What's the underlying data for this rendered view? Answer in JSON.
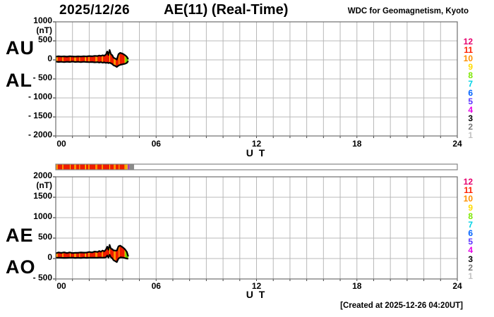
{
  "header": {
    "date": "2025/12/26",
    "title": "AE(11) (Real-Time)",
    "credit": "WDC for Geomagnetism, Kyoto"
  },
  "footer": {
    "created": "[Created at 2025-12-26 04:20UT]"
  },
  "panels": {
    "top": {
      "label_upper": "AU",
      "label_lower": "AL",
      "unit": "(nT)",
      "ytick_labels": [
        "1000",
        "500",
        "0",
        "- 500",
        "- 1000",
        "- 1500",
        "- 2000"
      ],
      "xtick_labels": [
        "00",
        "06",
        "12",
        "18",
        "24"
      ],
      "xlabel": "U T"
    },
    "bottom": {
      "label_upper": "AE",
      "label_lower": "AO",
      "unit": "(nT)",
      "ytick_labels": [
        "2000",
        "1500",
        "1000",
        "500",
        "0",
        "- 500"
      ],
      "xtick_labels": [
        "00",
        "06",
        "12",
        "18",
        "24"
      ],
      "xlabel": "U T"
    }
  },
  "stations": [
    {
      "n": "12",
      "color": "#e6006e"
    },
    {
      "n": "11",
      "color": "#ff2000"
    },
    {
      "n": "10",
      "color": "#ff9000"
    },
    {
      "n": "9",
      "color": "#ffdc00"
    },
    {
      "n": "8",
      "color": "#7de800"
    },
    {
      "n": "7",
      "color": "#00d2e6"
    },
    {
      "n": "6",
      "color": "#0064ff"
    },
    {
      "n": "5",
      "color": "#5a32ff"
    },
    {
      "n": "4",
      "color": "#e600e6"
    },
    {
      "n": "3",
      "color": "#000000"
    },
    {
      "n": "2",
      "color": "#7a7a7a"
    },
    {
      "n": "1",
      "color": "#c2c2c2"
    }
  ],
  "chart_data": {
    "type": "line",
    "title": "AE(11) (Real-Time) 2025/12/26",
    "xlabel": "U T",
    "ylabel": "nT",
    "xlim": [
      0,
      24
    ],
    "xtick_hours": [
      0,
      6,
      12,
      18,
      24
    ],
    "data_end_hour": 4.33,
    "x_hours": [
      0,
      0.17,
      0.33,
      0.5,
      0.67,
      0.83,
      1.0,
      1.17,
      1.33,
      1.5,
      1.67,
      1.83,
      2.0,
      2.17,
      2.33,
      2.5,
      2.6,
      2.7,
      2.8,
      2.9,
      3.0,
      3.08,
      3.15,
      3.22,
      3.3,
      3.38,
      3.45,
      3.55,
      3.65,
      3.75,
      3.85,
      3.95,
      4.05,
      4.15,
      4.25,
      4.33
    ],
    "panel_top": {
      "series_names": [
        "AU",
        "AL"
      ],
      "ylim": [
        -2000,
        1000
      ],
      "ytick_values": [
        1000,
        500,
        0,
        -500,
        -1000,
        -1500,
        -2000
      ]
    },
    "panel_bottom": {
      "series_names": [
        "AE",
        "AO"
      ],
      "ylim": [
        -500,
        2000
      ],
      "ytick_values": [
        2000,
        1500,
        1000,
        500,
        0,
        -500
      ]
    },
    "series": {
      "AU": [
        85,
        95,
        88,
        92,
        85,
        95,
        90,
        85,
        92,
        88,
        95,
        90,
        100,
        95,
        105,
        100,
        115,
        105,
        120,
        110,
        140,
        220,
        130,
        260,
        150,
        120,
        60,
        35,
        10,
        150,
        185,
        170,
        150,
        120,
        80,
        20
      ],
      "AL": [
        -45,
        -55,
        -50,
        -60,
        -50,
        -55,
        -45,
        -55,
        -50,
        -60,
        -50,
        -55,
        -60,
        -55,
        -65,
        -60,
        -70,
        -60,
        -75,
        -65,
        -80,
        -70,
        -85,
        -75,
        -90,
        -110,
        -140,
        -160,
        -185,
        -150,
        -130,
        -120,
        -110,
        -100,
        -80,
        -30
      ],
      "AE": [
        130,
        150,
        138,
        152,
        135,
        150,
        135,
        140,
        142,
        148,
        145,
        145,
        160,
        150,
        170,
        160,
        185,
        165,
        195,
        175,
        220,
        290,
        215,
        335,
        240,
        230,
        200,
        195,
        195,
        300,
        315,
        290,
        260,
        220,
        160,
        50
      ],
      "AO": [
        20,
        20,
        19,
        16,
        18,
        20,
        23,
        15,
        21,
        14,
        23,
        18,
        20,
        20,
        20,
        20,
        23,
        23,
        23,
        23,
        30,
        75,
        23,
        93,
        30,
        5,
        -40,
        -63,
        -88,
        0,
        28,
        25,
        20,
        10,
        0,
        -5
      ]
    },
    "band": {
      "outline_color": "#000000",
      "tip_color": "#66cc00",
      "stripe_pattern": [
        [
          "#ff9000",
          3
        ],
        [
          "#ee1c00",
          6
        ],
        [
          "#ff9000",
          2
        ],
        [
          "#ee1c00",
          9
        ],
        [
          "#ffd000",
          1
        ],
        [
          "#ee1c00",
          5
        ],
        [
          "#ff9000",
          3
        ],
        [
          "#ee1c00",
          4
        ],
        [
          "#ff9000",
          1.5
        ],
        [
          "#ee1c00",
          7
        ],
        [
          "#ffd000",
          1.5
        ],
        [
          "#ee1c00",
          3
        ],
        [
          "#ff9000",
          2
        ],
        [
          "#ee1c00",
          8
        ]
      ]
    },
    "colorbar": {
      "data_from_hour": 0,
      "data_to_hour": 4.29,
      "marks": [
        {
          "from": 4.2,
          "to": 4.29,
          "color": "#ffd800"
        },
        {
          "from": 4.29,
          "to": 4.42,
          "color": "#aa44aa"
        },
        {
          "from": 4.42,
          "to": 4.68,
          "color": "#8a8a8a"
        }
      ],
      "empty_color": "#ffffff",
      "border_color": "#858585"
    },
    "grid": {
      "on": true,
      "color": "#b8b8b8",
      "border_color": "#6e6e6e"
    }
  }
}
